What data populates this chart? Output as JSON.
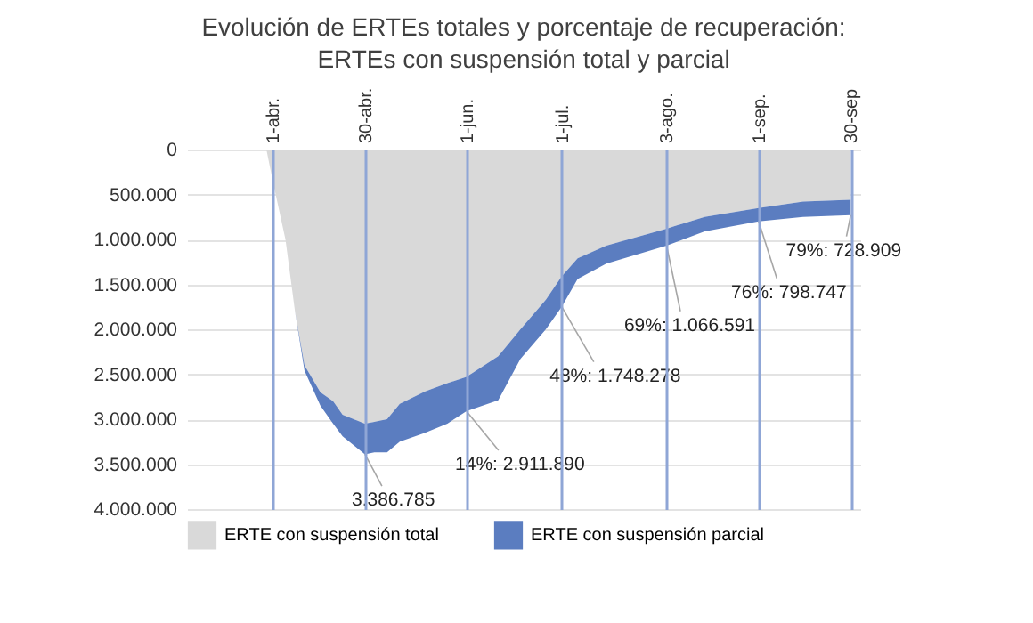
{
  "chart_data": {
    "type": "area",
    "title": "Evolución de ERTEs totales y porcentaje de recuperación:",
    "subtitle": "ERTEs con suspensión total y parcial",
    "stacked": true,
    "x": [
      "--03-11",
      "--03-30",
      "--04-01",
      "--04-05",
      "--04-08",
      "--04-11",
      "--04-16",
      "--04-20",
      "--04-23",
      "--04-30",
      "--05-03",
      "--05-07",
      "--05-11",
      "--05-19",
      "--05-26",
      "--06-01",
      "--06-11",
      "--06-18",
      "--06-26",
      "--07-01",
      "--07-06",
      "--07-15",
      "--08-03",
      "--08-15",
      "--09-01",
      "--09-15",
      "--09-30"
    ],
    "series": [
      {
        "name": "ERTE con suspensión total",
        "color": "#d9d9d9",
        "values": [
          0,
          0,
          350000,
          1000000,
          1800000,
          2400000,
          2700000,
          2800000,
          2950000,
          3050000,
          3030000,
          3000000,
          2830000,
          2690000,
          2600000,
          2530000,
          2300000,
          2000000,
          1670000,
          1410000,
          1210000,
          1070000,
          880000,
          750000,
          650000,
          580000,
          560000
        ]
      },
      {
        "name": "ERTE con suspensión parcial",
        "color": "#5b7dc0",
        "values": [
          0,
          0,
          0,
          0,
          0,
          60000,
          150000,
          250000,
          240000,
          340000,
          340000,
          370000,
          420000,
          460000,
          450000,
          380000,
          490000,
          330000,
          330000,
          340000,
          230000,
          200000,
          190000,
          160000,
          150000,
          170000,
          170000
        ]
      }
    ],
    "xlim": [
      "--03-05",
      "--10-03"
    ],
    "xticks": [
      {
        "value": "--04-01",
        "label": "1-abr."
      },
      {
        "value": "--04-30",
        "label": "30-abr."
      },
      {
        "value": "--06-01",
        "label": "1-jun."
      },
      {
        "value": "--07-01",
        "label": "1-jul."
      },
      {
        "value": "--08-03",
        "label": "3-ago."
      },
      {
        "value": "--09-01",
        "label": "1-sep."
      },
      {
        "value": "--09-30",
        "label": "30-sep"
      }
    ],
    "ylim": [
      4000000,
      0
    ],
    "yticks": [
      {
        "value": 0,
        "label": "0"
      },
      {
        "value": 500000,
        "label": "500.000"
      },
      {
        "value": 1000000,
        "label": "1.000.000"
      },
      {
        "value": 1500000,
        "label": "1.500.000"
      },
      {
        "value": 2000000,
        "label": "2.000.000"
      },
      {
        "value": 2500000,
        "label": "2.500.000"
      },
      {
        "value": 3000000,
        "label": "3.000.000"
      },
      {
        "value": 3500000,
        "label": "3.500.000"
      },
      {
        "value": 4000000,
        "label": "4.000.000"
      }
    ],
    "grid": true,
    "legend": "bottom",
    "annotations": [
      {
        "text": "3.386.785",
        "x": "--04-30",
        "y": 3386785
      },
      {
        "text": "14%: 2.911.890",
        "x": "--06-01",
        "y": 2911890
      },
      {
        "text": "48%: 1.748.278",
        "x": "--07-01",
        "y": 1748278
      },
      {
        "text": "69%: 1.066.591",
        "x": "--08-03",
        "y": 1066591
      },
      {
        "text": "76%: 798.747",
        "x": "--09-01",
        "y": 798747
      },
      {
        "text": "79%: 728.909",
        "x": "--09-30",
        "y": 728909
      }
    ]
  }
}
